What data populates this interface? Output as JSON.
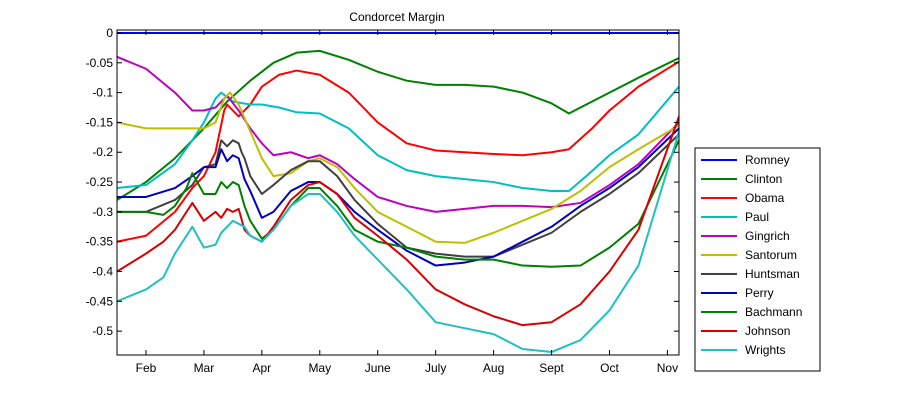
{
  "chart_data": {
    "type": "line",
    "title": "Condorcet Margin",
    "xlabel": "",
    "ylabel": "",
    "xlim": [
      1.5,
      11.2
    ],
    "ylim": [
      -0.54,
      0.005
    ],
    "grid": false,
    "legend": "right",
    "x_tick_values": [
      2,
      3,
      4,
      5,
      6,
      7,
      8,
      9,
      10,
      11
    ],
    "x_tick_labels": [
      "Feb",
      "Mar",
      "Apr",
      "May",
      "June",
      "July",
      "Aug",
      "Sept",
      "Oct",
      "Nov"
    ],
    "y_tick_values": [
      0,
      -0.05,
      -0.1,
      -0.15,
      -0.2,
      -0.25,
      -0.3,
      -0.35,
      -0.4,
      -0.45,
      -0.5
    ],
    "y_tick_labels": [
      "0",
      "-0.05",
      "-0.1",
      "-0.15",
      "-0.2",
      "-0.25",
      "-0.3",
      "-0.35",
      "-0.4",
      "-0.45",
      "-0.5"
    ],
    "series": [
      {
        "name": "Romney",
        "color": "#0000ff",
        "x": [
          1.5,
          11.2
        ],
        "y": [
          0,
          0
        ]
      },
      {
        "name": "Clinton",
        "color": "#008000",
        "x": [
          1.5,
          2.0,
          2.5,
          3.0,
          3.4,
          3.8,
          4.2,
          4.6,
          5.0,
          5.5,
          6.0,
          6.5,
          7.0,
          7.5,
          8.0,
          8.5,
          9.0,
          9.3,
          9.6,
          10.0,
          10.5,
          11.2
        ],
        "y": [
          -0.28,
          -0.25,
          -0.21,
          -0.16,
          -0.115,
          -0.08,
          -0.05,
          -0.033,
          -0.03,
          -0.045,
          -0.065,
          -0.08,
          -0.087,
          -0.087,
          -0.09,
          -0.1,
          -0.118,
          -0.135,
          -0.12,
          -0.1,
          -0.075,
          -0.042
        ]
      },
      {
        "name": "Obama",
        "color": "#ff0000",
        "x": [
          1.5,
          2.0,
          2.5,
          2.8,
          3.0,
          3.2,
          3.35,
          3.4,
          3.45,
          3.6,
          3.8,
          4.0,
          4.3,
          4.6,
          5.0,
          5.5,
          6.0,
          6.5,
          7.0,
          7.5,
          8.0,
          8.5,
          9.0,
          9.3,
          9.7,
          10.0,
          10.5,
          11.2
        ],
        "y": [
          -0.35,
          -0.34,
          -0.3,
          -0.26,
          -0.24,
          -0.2,
          -0.13,
          -0.12,
          -0.125,
          -0.14,
          -0.12,
          -0.09,
          -0.07,
          -0.063,
          -0.07,
          -0.1,
          -0.15,
          -0.185,
          -0.197,
          -0.2,
          -0.203,
          -0.205,
          -0.2,
          -0.195,
          -0.16,
          -0.13,
          -0.09,
          -0.048
        ]
      },
      {
        "name": "Paul",
        "color": "#00bfbf",
        "x": [
          1.5,
          2.0,
          2.5,
          2.8,
          3.0,
          3.2,
          3.3,
          3.5,
          3.8,
          4.0,
          4.3,
          4.6,
          5.0,
          5.5,
          6.0,
          6.5,
          7.0,
          7.5,
          8.0,
          8.5,
          9.0,
          9.3,
          9.6,
          10.0,
          10.5,
          11.2
        ],
        "y": [
          -0.26,
          -0.255,
          -0.22,
          -0.18,
          -0.15,
          -0.11,
          -0.1,
          -0.115,
          -0.12,
          -0.12,
          -0.125,
          -0.133,
          -0.135,
          -0.16,
          -0.205,
          -0.23,
          -0.24,
          -0.245,
          -0.25,
          -0.26,
          -0.265,
          -0.265,
          -0.24,
          -0.205,
          -0.17,
          -0.09
        ]
      },
      {
        "name": "Gingrich",
        "color": "#bf00bf",
        "x": [
          1.5,
          2.0,
          2.5,
          2.8,
          3.0,
          3.2,
          3.4,
          3.6,
          3.8,
          4.0,
          4.2,
          4.5,
          4.8,
          5.0,
          5.3,
          5.6,
          6.0,
          6.5,
          7.0,
          7.5,
          8.0,
          8.5,
          9.0,
          9.5,
          10.0,
          10.5,
          11.2
        ],
        "y": [
          -0.04,
          -0.06,
          -0.1,
          -0.13,
          -0.13,
          -0.125,
          -0.105,
          -0.13,
          -0.16,
          -0.185,
          -0.205,
          -0.2,
          -0.21,
          -0.205,
          -0.22,
          -0.245,
          -0.275,
          -0.29,
          -0.3,
          -0.295,
          -0.29,
          -0.29,
          -0.292,
          -0.285,
          -0.255,
          -0.22,
          -0.15
        ]
      },
      {
        "name": "Santorum",
        "color": "#bfbf00",
        "x": [
          1.5,
          2.0,
          2.5,
          3.0,
          3.2,
          3.35,
          3.45,
          3.6,
          3.8,
          4.0,
          4.2,
          4.5,
          4.8,
          5.0,
          5.3,
          5.6,
          6.0,
          6.5,
          7.0,
          7.5,
          8.0,
          8.5,
          9.0,
          9.5,
          10.0,
          10.5,
          11.2
        ],
        "y": [
          -0.15,
          -0.16,
          -0.16,
          -0.16,
          -0.15,
          -0.11,
          -0.1,
          -0.12,
          -0.165,
          -0.21,
          -0.24,
          -0.235,
          -0.215,
          -0.21,
          -0.225,
          -0.26,
          -0.3,
          -0.325,
          -0.35,
          -0.352,
          -0.335,
          -0.315,
          -0.295,
          -0.265,
          -0.225,
          -0.195,
          -0.155
        ]
      },
      {
        "name": "Huntsman",
        "color": "#404040",
        "x": [
          1.5,
          2.0,
          2.5,
          2.8,
          3.0,
          3.2,
          3.3,
          3.4,
          3.5,
          3.6,
          3.65,
          3.7,
          3.8,
          4.0,
          4.2,
          4.5,
          4.8,
          5.0,
          5.3,
          5.6,
          6.0,
          6.5,
          7.0,
          7.5,
          8.0,
          8.5,
          9.0,
          9.5,
          10.0,
          10.5,
          11.2
        ],
        "y": [
          -0.3,
          -0.3,
          -0.28,
          -0.255,
          -0.225,
          -0.22,
          -0.18,
          -0.19,
          -0.18,
          -0.185,
          -0.2,
          -0.21,
          -0.24,
          -0.27,
          -0.255,
          -0.23,
          -0.215,
          -0.215,
          -0.24,
          -0.28,
          -0.32,
          -0.36,
          -0.37,
          -0.375,
          -0.375,
          -0.355,
          -0.335,
          -0.3,
          -0.27,
          -0.235,
          -0.17
        ]
      },
      {
        "name": "Perry",
        "color": "#0000bf",
        "x": [
          1.5,
          2.0,
          2.5,
          2.8,
          3.0,
          3.2,
          3.3,
          3.4,
          3.5,
          3.6,
          3.7,
          3.8,
          4.0,
          4.2,
          4.5,
          4.8,
          5.0,
          5.3,
          5.6,
          6.0,
          6.5,
          7.0,
          7.5,
          8.0,
          8.5,
          9.0,
          9.5,
          10.0,
          10.5,
          11.2
        ],
        "y": [
          -0.275,
          -0.275,
          -0.26,
          -0.24,
          -0.225,
          -0.225,
          -0.195,
          -0.215,
          -0.205,
          -0.21,
          -0.245,
          -0.265,
          -0.31,
          -0.3,
          -0.265,
          -0.25,
          -0.25,
          -0.27,
          -0.3,
          -0.33,
          -0.365,
          -0.39,
          -0.385,
          -0.375,
          -0.35,
          -0.325,
          -0.29,
          -0.26,
          -0.225,
          -0.16
        ]
      },
      {
        "name": "Bachmann",
        "color": "#008000",
        "x": [
          1.5,
          2.0,
          2.3,
          2.5,
          2.7,
          2.8,
          3.0,
          3.2,
          3.3,
          3.4,
          3.5,
          3.6,
          3.7,
          3.8,
          4.0,
          4.2,
          4.5,
          4.8,
          5.0,
          5.3,
          5.6,
          6.0,
          6.5,
          7.0,
          7.5,
          8.0,
          8.5,
          9.0,
          9.5,
          10.0,
          10.5,
          11.2
        ],
        "y": [
          -0.3,
          -0.3,
          -0.305,
          -0.29,
          -0.26,
          -0.235,
          -0.27,
          -0.27,
          -0.25,
          -0.26,
          -0.25,
          -0.255,
          -0.29,
          -0.315,
          -0.345,
          -0.33,
          -0.29,
          -0.26,
          -0.26,
          -0.29,
          -0.33,
          -0.35,
          -0.36,
          -0.375,
          -0.38,
          -0.38,
          -0.39,
          -0.392,
          -0.39,
          -0.36,
          -0.32,
          -0.18
        ]
      },
      {
        "name": "Johnson",
        "color": "#d80000",
        "x": [
          1.5,
          2.0,
          2.3,
          2.5,
          2.7,
          2.8,
          3.0,
          3.2,
          3.3,
          3.4,
          3.5,
          3.6,
          3.7,
          3.8,
          4.0,
          4.2,
          4.5,
          4.8,
          5.0,
          5.3,
          5.6,
          6.0,
          6.5,
          7.0,
          7.5,
          8.0,
          8.5,
          9.0,
          9.5,
          10.0,
          10.5,
          11.2
        ],
        "y": [
          -0.4,
          -0.37,
          -0.35,
          -0.33,
          -0.3,
          -0.285,
          -0.315,
          -0.3,
          -0.31,
          -0.295,
          -0.3,
          -0.295,
          -0.33,
          -0.34,
          -0.35,
          -0.325,
          -0.28,
          -0.255,
          -0.25,
          -0.27,
          -0.31,
          -0.34,
          -0.38,
          -0.43,
          -0.455,
          -0.475,
          -0.49,
          -0.485,
          -0.455,
          -0.4,
          -0.33,
          -0.14
        ]
      },
      {
        "name": "Wrights",
        "color": "#20c0c0",
        "x": [
          1.5,
          2.0,
          2.3,
          2.5,
          2.7,
          2.8,
          3.0,
          3.2,
          3.3,
          3.4,
          3.5,
          3.6,
          3.7,
          3.8,
          4.0,
          4.2,
          4.5,
          4.8,
          5.0,
          5.3,
          5.6,
          6.0,
          6.5,
          7.0,
          7.5,
          8.0,
          8.5,
          9.0,
          9.5,
          10.0,
          10.5,
          11.2
        ],
        "y": [
          -0.45,
          -0.43,
          -0.41,
          -0.37,
          -0.34,
          -0.325,
          -0.36,
          -0.355,
          -0.335,
          -0.325,
          -0.315,
          -0.32,
          -0.325,
          -0.34,
          -0.35,
          -0.33,
          -0.29,
          -0.27,
          -0.27,
          -0.3,
          -0.34,
          -0.38,
          -0.43,
          -0.485,
          -0.495,
          -0.505,
          -0.53,
          -0.535,
          -0.515,
          -0.465,
          -0.39,
          -0.165
        ]
      }
    ]
  }
}
